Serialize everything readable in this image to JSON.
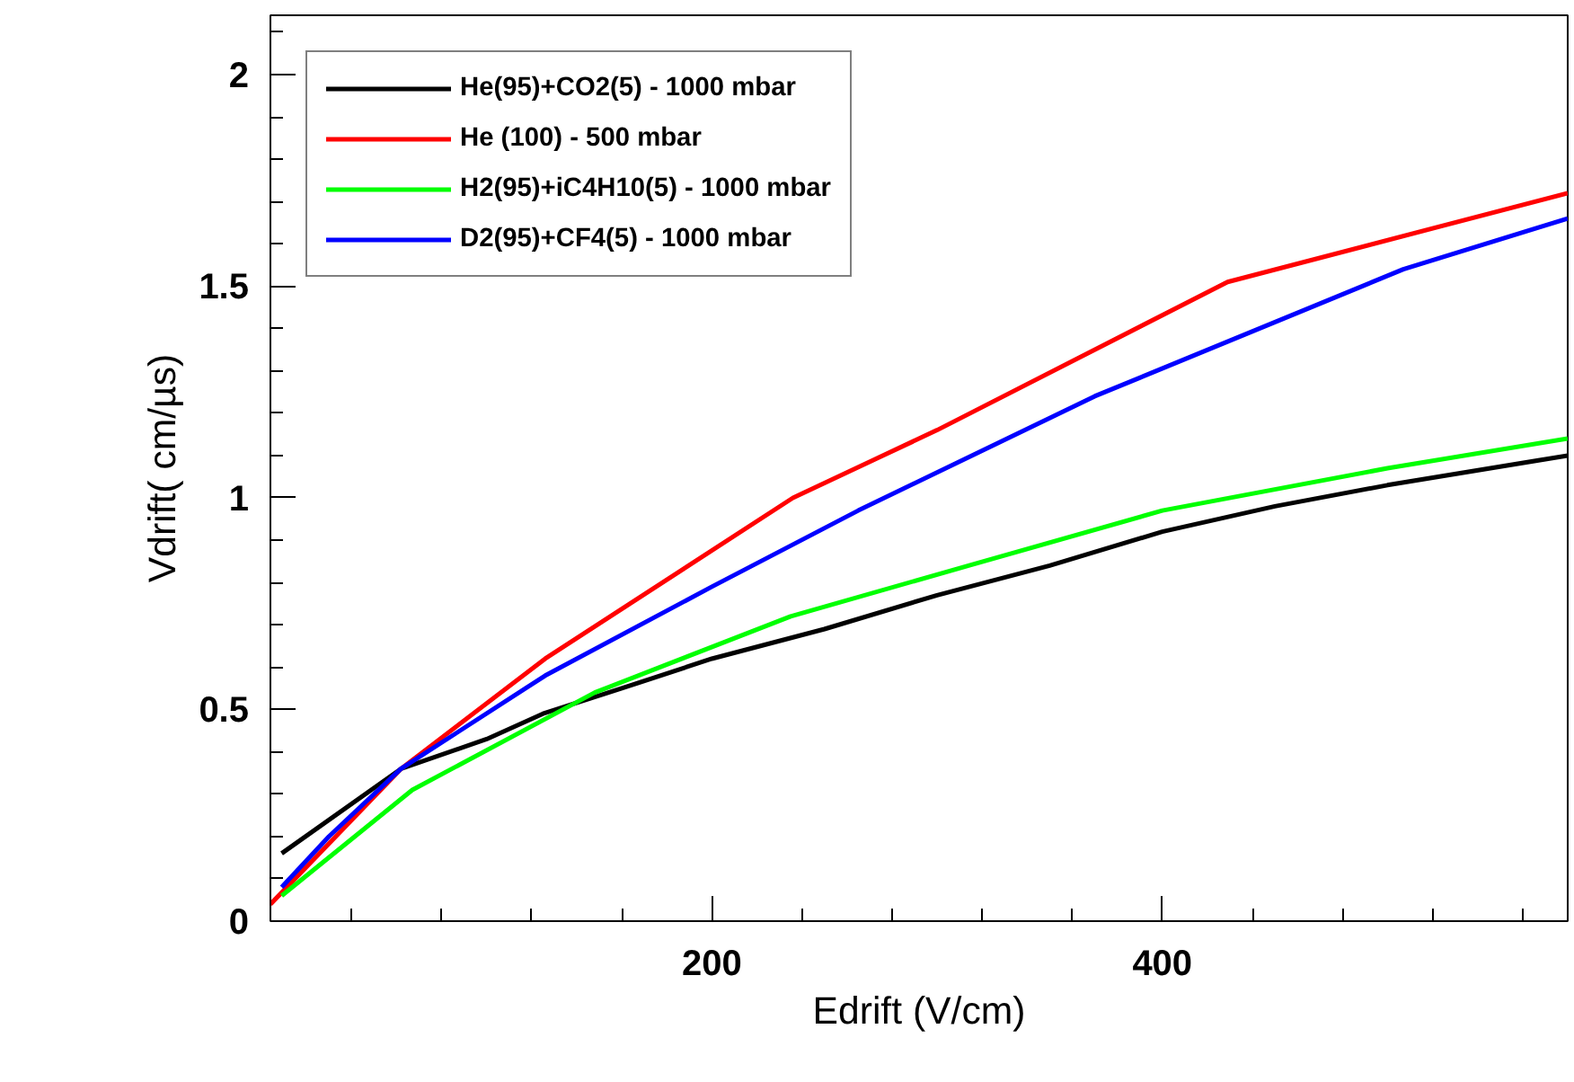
{
  "chart_data": {
    "type": "line",
    "xlabel": "Edrift (V/cm)",
    "ylabel": "Vdrift( cm/µs)",
    "xlim": [
      4,
      580
    ],
    "ylim": [
      0,
      2.14
    ],
    "xticks": [
      200,
      400
    ],
    "yticks": [
      0,
      0.5,
      1,
      1.5,
      2
    ],
    "grid": false,
    "legend": "top left",
    "marker": "none",
    "line_style": "solid",
    "series": [
      {
        "name": "He(95)+CO2(5) - 1000 mbar",
        "color": "#000000",
        "x": [
          9,
          62,
          100,
          125,
          160,
          200,
          250,
          300,
          350,
          400,
          450,
          500,
          580
        ],
        "values": [
          0.16,
          0.36,
          0.43,
          0.49,
          0.55,
          0.62,
          0.69,
          0.77,
          0.84,
          0.92,
          0.98,
          1.03,
          1.1
        ]
      },
      {
        "name": "He (100) - 500 mbar",
        "color": "#ff0000",
        "x": [
          4,
          62,
          126,
          236,
          300,
          429,
          580
        ],
        "values": [
          0.04,
          0.36,
          0.62,
          1.0,
          1.16,
          1.51,
          1.72
        ]
      },
      {
        "name": "H2(95)+iC4H10(5) - 1000 mbar",
        "color": "#00ff00",
        "x": [
          9,
          67,
          148,
          235,
          314,
          400,
          500,
          580
        ],
        "values": [
          0.06,
          0.31,
          0.54,
          0.72,
          0.84,
          0.97,
          1.07,
          1.14
        ]
      },
      {
        "name": "D2(95)+CF4(5) - 1000 mbar",
        "color": "#0000ff",
        "x": [
          9,
          30,
          62,
          126,
          200,
          265,
          370,
          507,
          580
        ],
        "values": [
          0.08,
          0.2,
          0.36,
          0.58,
          0.79,
          0.97,
          1.24,
          1.54,
          1.66
        ]
      }
    ]
  }
}
